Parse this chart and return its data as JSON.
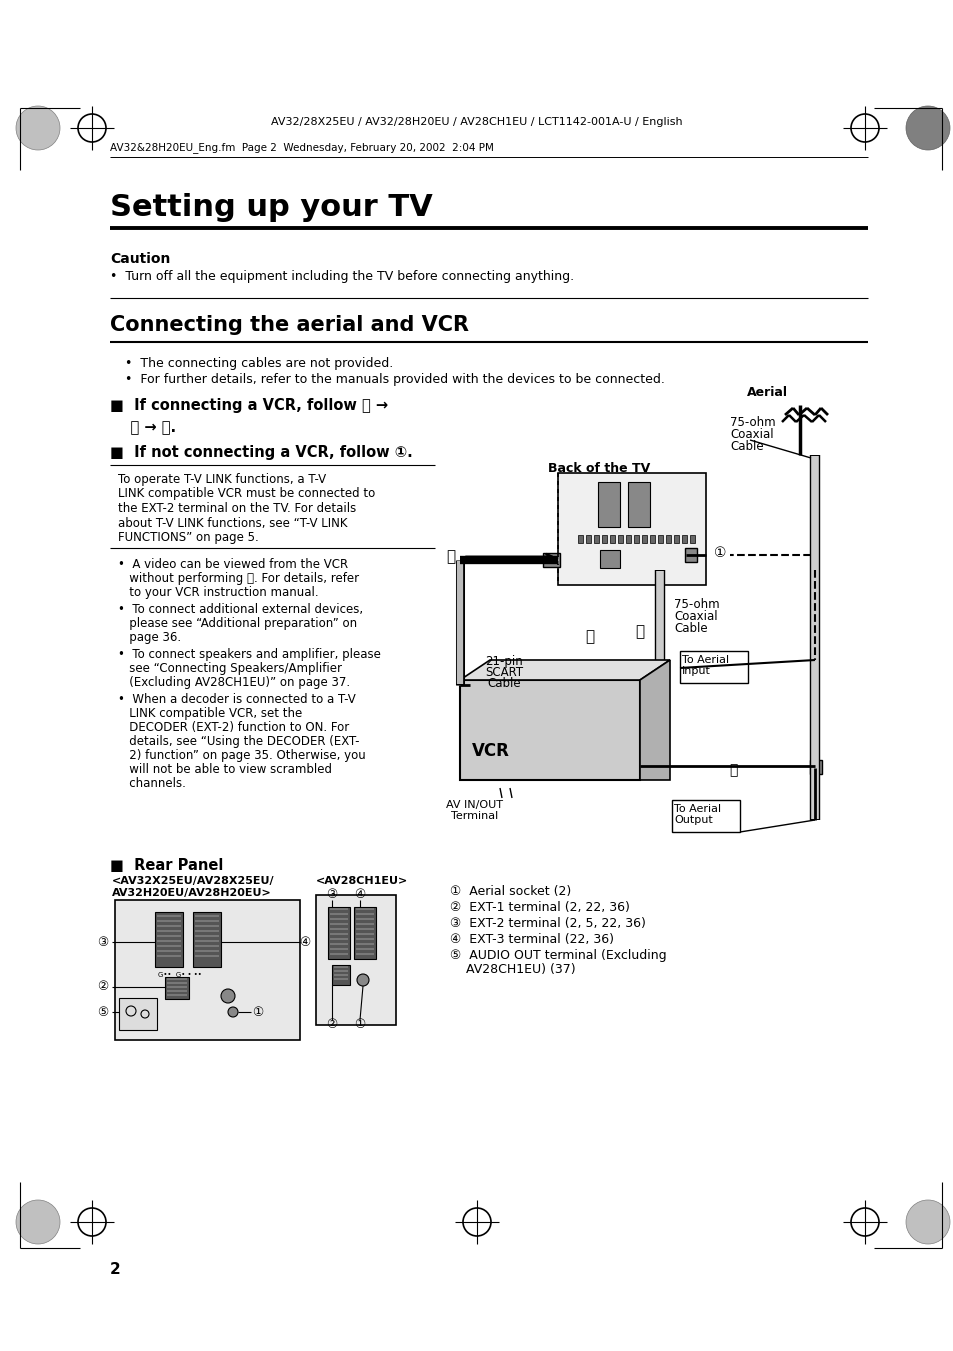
{
  "bg_color": "#ffffff",
  "header_text": "AV32/28X25EU / AV32/28H20EU / AV28CH1EU / LCT1142-001A-U / English",
  "subheader_text": "AV32&28H20EU_Eng.fm  Page 2  Wednesday, February 20, 2002  2:04 PM",
  "title": "Setting up your TV",
  "caution_title": "Caution",
  "caution_bullet": "•  Turn off all the equipment including the TV before connecting anything.",
  "section2_title": "Connecting the aerial and VCR",
  "bullet1": "•  The connecting cables are not provided.",
  "bullet2": "•  For further details, refer to the manuals provided with the devices to be connected.",
  "vcr_heading1": "■  If connecting a VCR, follow Ⓐ →",
  "vcr_heading1b": "    Ⓑ → Ⓒ.",
  "vcr_heading2": "■  If not connecting a VCR, follow ①.",
  "box_text_lines": [
    "To operate T-V LINK functions, a T-V",
    "LINK compatible VCR must be connected to",
    "the EXT-2 terminal on the TV. For details",
    "about T-V LINK functions, see “T-V LINK",
    "FUNCTIONS” on page 5."
  ],
  "bullet_a_lines": [
    "•  A video can be viewed from the VCR",
    "   without performing Ⓒ. For details, refer",
    "   to your VCR instruction manual."
  ],
  "bullet_b_lines": [
    "•  To connect additional external devices,",
    "   please see “Additional preparation” on",
    "   page 36."
  ],
  "bullet_c_lines": [
    "•  To connect speakers and amplifier, please",
    "   see “Connecting Speakers/Amplifier",
    "   (Excluding AV28CH1EU)” on page 37."
  ],
  "bullet_d_lines": [
    "•  When a decoder is connected to a T-V",
    "   LINK compatible VCR, set the",
    "   DECODER (EXT-2) function to ON. For",
    "   details, see “Using the DECODER (EXT-",
    "   2) function” on page 35. Otherwise, you",
    "   will not be able to view scrambled",
    "   channels."
  ],
  "rear_panel_title": "■  Rear Panel",
  "rear_label1_lines": [
    "<AV32X25EU/AV28X25EU/",
    "AV32H20EU/AV28H20EU>"
  ],
  "rear_label2": "<AV28CH1EU>",
  "legend1": "①  Aerial socket (2)",
  "legend2": "②  EXT-1 terminal (2, 22, 36)",
  "legend3": "③  EXT-2 terminal (2, 5, 22, 36)",
  "legend4": "④  EXT-3 terminal (22, 36)",
  "legend5a": "⑤  AUDIO OUT terminal (Excluding",
  "legend5b": "    AV28CH1EU) (37)",
  "page_num": "2",
  "aerial_label": "Aerial",
  "coax1_label_lines": [
    "75-ohm",
    "Coaxial",
    "Cable"
  ],
  "back_tv_label": "Back of the TV",
  "coax2_label_lines": [
    "75-ohm",
    "Coaxial",
    "Cable"
  ],
  "scart_label_lines": [
    "21-pin",
    "SCART",
    "Cable"
  ],
  "vcr_label": "VCR",
  "aerial_input_label_lines": [
    "To Aerial",
    "Input"
  ],
  "aerial_output_label_lines": [
    "To Aerial",
    "Output"
  ],
  "av_terminal_label_lines": [
    "AV IN/OUT",
    "Terminal"
  ]
}
